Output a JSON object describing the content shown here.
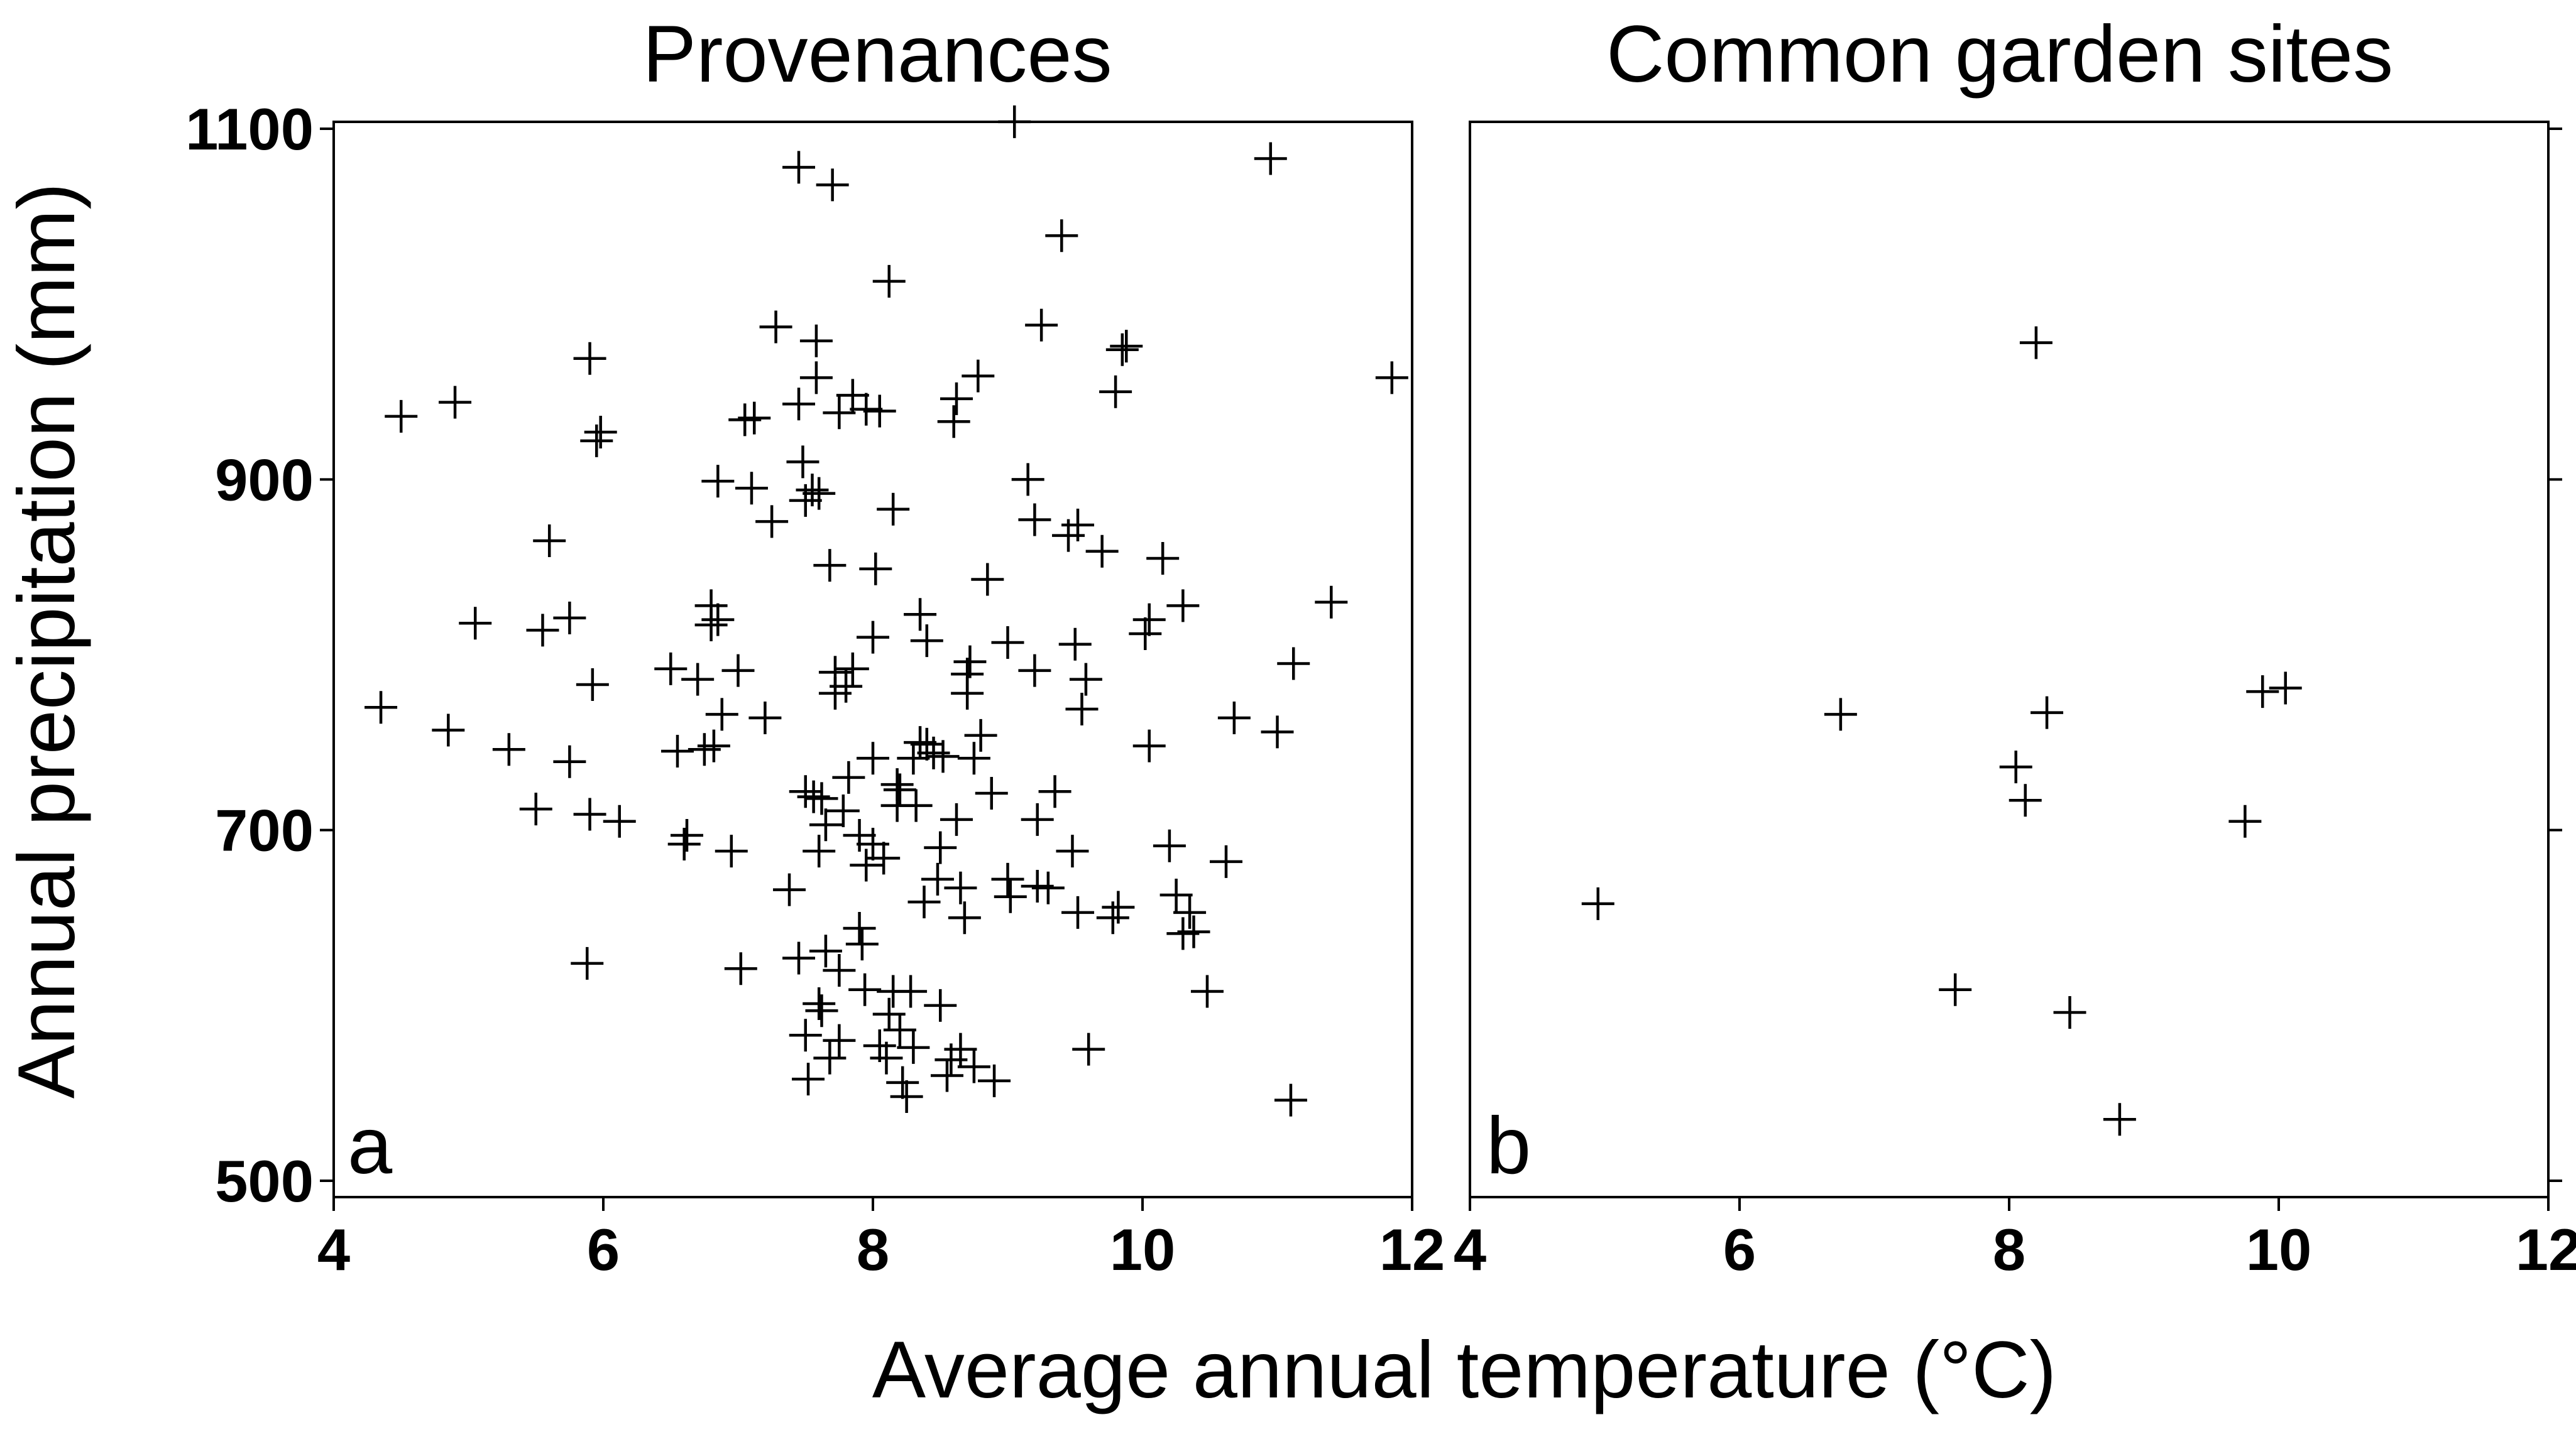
{
  "figure": {
    "xlabel": "Average annual temperature (°C)",
    "ylabel": "Annual precipitation (mm)"
  },
  "chart_data": [
    {
      "type": "scatter",
      "panel": "a",
      "title": "Provenances",
      "xlim": [
        4,
        12
      ],
      "ylim": [
        500,
        1100
      ],
      "xticks": [
        4,
        6,
        8,
        10,
        12
      ],
      "yticks": [
        500,
        700,
        900,
        1100
      ],
      "xticklabels": [
        "4",
        "6",
        "8",
        "10",
        "12"
      ],
      "yticklabels": [
        "500",
        "700",
        "900",
        "1100"
      ],
      "marker": "plus",
      "points": [
        [
          4.35,
          770
        ],
        [
          4.5,
          936
        ],
        [
          4.85,
          757
        ],
        [
          4.9,
          944
        ],
        [
          5.05,
          818
        ],
        [
          5.3,
          746
        ],
        [
          5.5,
          712
        ],
        [
          5.55,
          814
        ],
        [
          5.6,
          865
        ],
        [
          5.75,
          739
        ],
        [
          5.75,
          821
        ],
        [
          5.88,
          624
        ],
        [
          5.9,
          969
        ],
        [
          5.9,
          709
        ],
        [
          5.92,
          783
        ],
        [
          5.95,
          922
        ],
        [
          5.98,
          927
        ],
        [
          6.12,
          705
        ],
        [
          6.5,
          792
        ],
        [
          6.55,
          745
        ],
        [
          6.6,
          692
        ],
        [
          6.62,
          697
        ],
        [
          6.7,
          786
        ],
        [
          6.75,
          746
        ],
        [
          6.8,
          828
        ],
        [
          6.8,
          817
        ],
        [
          6.82,
          748
        ],
        [
          6.85,
          899
        ],
        [
          6.85,
          820
        ],
        [
          6.88,
          766
        ],
        [
          6.95,
          688
        ],
        [
          7.0,
          791
        ],
        [
          7.02,
          621
        ],
        [
          7.05,
          934
        ],
        [
          7.1,
          895
        ],
        [
          7.12,
          935
        ],
        [
          7.2,
          764
        ],
        [
          7.25,
          876
        ],
        [
          7.28,
          987
        ],
        [
          7.38,
          666
        ],
        [
          7.45,
          943
        ],
        [
          7.45,
          627
        ],
        [
          7.45,
          1078
        ],
        [
          7.48,
          910
        ],
        [
          7.5,
          583
        ],
        [
          7.5,
          722
        ],
        [
          7.5,
          888
        ],
        [
          7.52,
          558
        ],
        [
          7.55,
          894
        ],
        [
          7.56,
          719
        ],
        [
          7.58,
          958
        ],
        [
          7.58,
          979
        ],
        [
          7.6,
          688
        ],
        [
          7.6,
          601
        ],
        [
          7.6,
          892
        ],
        [
          7.62,
          718
        ],
        [
          7.62,
          597
        ],
        [
          7.65,
          631
        ],
        [
          7.65,
          703
        ],
        [
          7.68,
          570
        ],
        [
          7.68,
          851
        ],
        [
          7.7,
          1068
        ],
        [
          7.72,
          790
        ],
        [
          7.72,
          778
        ],
        [
          7.75,
          580
        ],
        [
          7.75,
          938
        ],
        [
          7.75,
          620
        ],
        [
          7.78,
          711
        ],
        [
          7.8,
          782
        ],
        [
          7.82,
          730
        ],
        [
          7.85,
          948
        ],
        [
          7.85,
          792
        ],
        [
          7.9,
          697
        ],
        [
          7.9,
          644
        ],
        [
          7.92,
          635
        ],
        [
          7.94,
          609
        ],
        [
          7.95,
          680
        ],
        [
          7.95,
          940
        ],
        [
          8.0,
          741
        ],
        [
          8.0,
          692
        ],
        [
          8.0,
          810
        ],
        [
          8.02,
          849
        ],
        [
          8.05,
          939
        ],
        [
          8.05,
          577
        ],
        [
          8.08,
          684
        ],
        [
          8.1,
          570
        ],
        [
          8.12,
          1013
        ],
        [
          8.12,
          595
        ],
        [
          8.15,
          883
        ],
        [
          8.15,
          608
        ],
        [
          8.18,
          726
        ],
        [
          8.18,
          714
        ],
        [
          8.2,
          723
        ],
        [
          8.2,
          586
        ],
        [
          8.22,
          556
        ],
        [
          8.25,
          548
        ],
        [
          8.28,
          608
        ],
        [
          8.3,
          576
        ],
        [
          8.3,
          741
        ],
        [
          8.32,
          714
        ],
        [
          8.35,
          823
        ],
        [
          8.35,
          750
        ],
        [
          8.38,
          659
        ],
        [
          8.4,
          808
        ],
        [
          8.4,
          749
        ],
        [
          8.45,
          744
        ],
        [
          8.48,
          672
        ],
        [
          8.5,
          690
        ],
        [
          8.5,
          600
        ],
        [
          8.52,
          742
        ],
        [
          8.55,
          560
        ],
        [
          8.58,
          569
        ],
        [
          8.6,
          933
        ],
        [
          8.62,
          706
        ],
        [
          8.62,
          946
        ],
        [
          8.65,
          575
        ],
        [
          8.65,
          667
        ],
        [
          8.68,
          650
        ],
        [
          8.7,
          789
        ],
        [
          8.7,
          778
        ],
        [
          8.72,
          796
        ],
        [
          8.75,
          565
        ],
        [
          8.75,
          741
        ],
        [
          8.78,
          959
        ],
        [
          8.8,
          754
        ],
        [
          8.85,
          843
        ],
        [
          8.88,
          721
        ],
        [
          8.9,
          557
        ],
        [
          9.0,
          807
        ],
        [
          9.0,
          672
        ],
        [
          9.02,
          662
        ],
        [
          9.05,
          1104
        ],
        [
          9.15,
          900
        ],
        [
          9.2,
          791
        ],
        [
          9.2,
          877
        ],
        [
          9.22,
          706
        ],
        [
          9.22,
          668
        ],
        [
          9.25,
          988
        ],
        [
          9.3,
          667
        ],
        [
          9.35,
          722
        ],
        [
          9.4,
          1039
        ],
        [
          9.45,
          868
        ],
        [
          9.48,
          688
        ],
        [
          9.5,
          806
        ],
        [
          9.52,
          653
        ],
        [
          9.52,
          874
        ],
        [
          9.55,
          769
        ],
        [
          9.58,
          786
        ],
        [
          9.6,
          575
        ],
        [
          9.7,
          859
        ],
        [
          9.78,
          650
        ],
        [
          9.8,
          950
        ],
        [
          9.82,
          656
        ],
        [
          9.85,
          974
        ],
        [
          9.88,
          976
        ],
        [
          10.02,
          812
        ],
        [
          10.05,
          820
        ],
        [
          10.05,
          748
        ],
        [
          10.15,
          855
        ],
        [
          10.2,
          691
        ],
        [
          10.25,
          663
        ],
        [
          10.3,
          641
        ],
        [
          10.3,
          828
        ],
        [
          10.35,
          653
        ],
        [
          10.38,
          642
        ],
        [
          10.48,
          608
        ],
        [
          10.62,
          682
        ],
        [
          10.68,
          764
        ],
        [
          10.95,
          1083
        ],
        [
          11.0,
          756
        ],
        [
          11.1,
          546
        ],
        [
          11.12,
          795
        ],
        [
          11.4,
          830
        ],
        [
          11.85,
          958
        ]
      ]
    },
    {
      "type": "scatter",
      "panel": "b",
      "title": "Common garden sites",
      "xlim": [
        4,
        12
      ],
      "ylim": [
        500,
        1100
      ],
      "xticks": [
        4,
        6,
        8,
        10,
        12
      ],
      "yticks": [
        500,
        700,
        900,
        1100
      ],
      "xticklabels": [
        "4",
        "6",
        "8",
        "10",
        "12"
      ],
      "marker": "plus",
      "points": [
        [
          4.95,
          658
        ],
        [
          6.75,
          766
        ],
        [
          7.6,
          609
        ],
        [
          8.05,
          736
        ],
        [
          8.12,
          717
        ],
        [
          8.2,
          978
        ],
        [
          8.28,
          767
        ],
        [
          8.45,
          596
        ],
        [
          8.82,
          535
        ],
        [
          9.75,
          705
        ],
        [
          9.88,
          779
        ],
        [
          10.05,
          781
        ]
      ]
    }
  ]
}
